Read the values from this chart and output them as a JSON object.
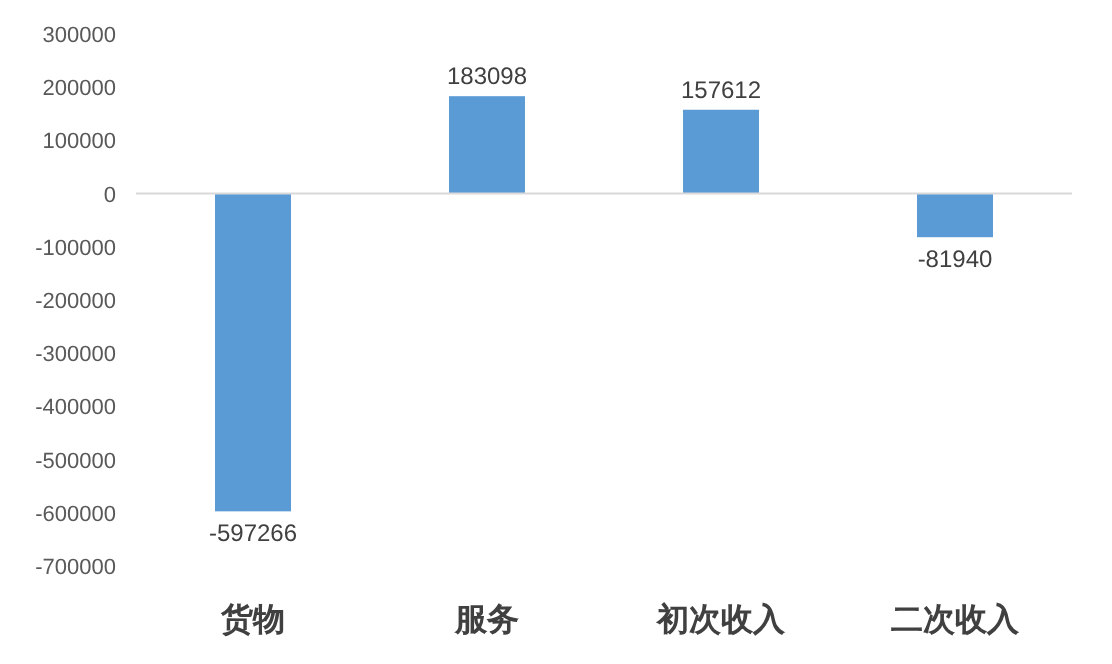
{
  "chart_data": {
    "type": "bar",
    "categories": [
      "货物",
      "服务",
      "初次收入",
      "二次收入"
    ],
    "values": [
      -597266,
      183098,
      157612,
      -81940
    ],
    "color": "#5b9bd5",
    "data_labels": true,
    "ylim": [
      -700000,
      300000
    ],
    "yticks": [
      -700000,
      -600000,
      -500000,
      -400000,
      -300000,
      -200000,
      -100000,
      0,
      100000,
      200000,
      300000
    ]
  }
}
